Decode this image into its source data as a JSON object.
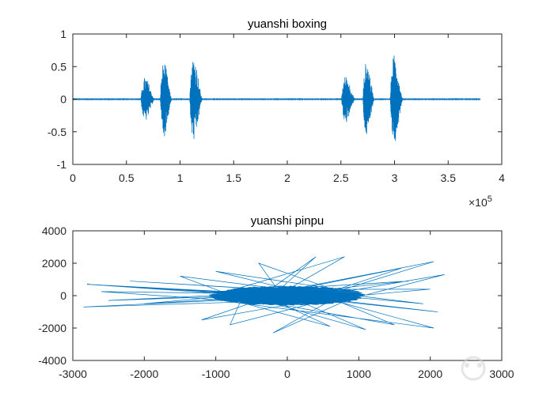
{
  "chart_data": [
    {
      "type": "line",
      "title": "yuanshi boxing",
      "xlabel": "",
      "ylabel": "",
      "xlim": [
        0,
        400000
      ],
      "ylim": [
        -1,
        1
      ],
      "xticks": [
        0,
        50000,
        100000,
        150000,
        200000,
        250000,
        300000,
        350000,
        400000
      ],
      "xtick_labels": [
        "0",
        "0.5",
        "1",
        "1.5",
        "2",
        "2.5",
        "3",
        "3.5",
        "4"
      ],
      "x_exponent_base": "×10",
      "x_exponent_power": "5",
      "yticks": [
        -1,
        -0.5,
        0,
        0.5,
        1
      ],
      "ytick_labels": [
        "-1",
        "-0.5",
        "0",
        "0.5",
        "1"
      ],
      "line_color": "#0072BD",
      "grid": false,
      "signal_range": [
        0,
        380000
      ],
      "bursts": [
        {
          "center": 70000,
          "width": 13000,
          "amplitude": 0.34
        },
        {
          "center": 87000,
          "width": 11000,
          "amplitude": 0.58
        },
        {
          "center": 115000,
          "width": 12000,
          "amplitude": 0.66
        },
        {
          "center": 257000,
          "width": 13000,
          "amplitude": 0.36
        },
        {
          "center": 276000,
          "width": 11000,
          "amplitude": 0.58
        },
        {
          "center": 302000,
          "width": 12000,
          "amplitude": 0.68
        }
      ]
    },
    {
      "type": "line",
      "title": "yuanshi pinpu",
      "xlabel": "",
      "ylabel": "",
      "xlim": [
        -3000,
        3000
      ],
      "ylim": [
        -4000,
        4000
      ],
      "xticks": [
        -3000,
        -2000,
        -1000,
        0,
        1000,
        2000,
        3000
      ],
      "xtick_labels": [
        "-3000",
        "-2000",
        "-1000",
        "0",
        "1000",
        "2000",
        "3000"
      ],
      "yticks": [
        -4000,
        -2000,
        0,
        2000,
        4000
      ],
      "ytick_labels": [
        "-4000",
        "-2000",
        "0",
        "2000",
        "4000"
      ],
      "line_color": "#0072BD",
      "grid": false,
      "outlier_points": [
        [
          -2800,
          700
        ],
        [
          -2850,
          -700
        ],
        [
          -2600,
          250
        ],
        [
          -2500,
          -300
        ],
        [
          -2200,
          900
        ],
        [
          2050,
          2100
        ],
        [
          2200,
          1300
        ],
        [
          2100,
          -1000
        ],
        [
          2050,
          -2000
        ],
        [
          1900,
          -500
        ],
        [
          400,
          2400
        ],
        [
          800,
          2400
        ],
        [
          -200,
          -2300
        ],
        [
          -400,
          2000
        ],
        [
          1600,
          1700
        ],
        [
          1500,
          -1800
        ],
        [
          -1200,
          -1500
        ],
        [
          -1000,
          1500
        ],
        [
          1100,
          -2100
        ],
        [
          -800,
          -1800
        ],
        [
          2000,
          400
        ],
        [
          -2000,
          -500
        ],
        [
          1700,
          900
        ],
        [
          -1500,
          1200
        ],
        [
          600,
          -1900
        ]
      ]
    }
  ]
}
